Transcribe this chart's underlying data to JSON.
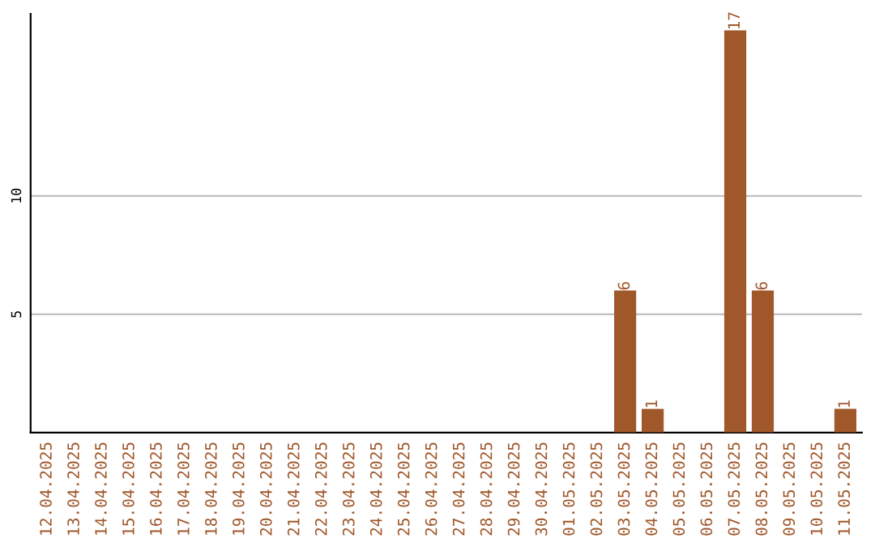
{
  "chart_data": {
    "type": "bar",
    "categories": [
      "12.04.2025",
      "13.04.2025",
      "14.04.2025",
      "15.04.2025",
      "16.04.2025",
      "17.04.2025",
      "18.04.2025",
      "19.04.2025",
      "20.04.2025",
      "21.04.2025",
      "22.04.2025",
      "23.04.2025",
      "24.04.2025",
      "25.04.2025",
      "26.04.2025",
      "27.04.2025",
      "28.04.2025",
      "29.04.2025",
      "30.04.2025",
      "01.05.2025",
      "02.05.2025",
      "03.05.2025",
      "04.05.2025",
      "05.05.2025",
      "06.05.2025",
      "07.05.2025",
      "08.05.2025",
      "09.05.2025",
      "10.05.2025",
      "11.05.2025"
    ],
    "values": [
      0,
      0,
      0,
      0,
      0,
      0,
      0,
      0,
      0,
      0,
      0,
      0,
      0,
      0,
      0,
      0,
      0,
      0,
      0,
      0,
      0,
      6,
      1,
      0,
      0,
      17,
      6,
      0,
      0,
      1
    ],
    "value_labels": [
      null,
      null,
      null,
      null,
      null,
      null,
      null,
      null,
      null,
      null,
      null,
      null,
      null,
      null,
      null,
      null,
      null,
      null,
      null,
      null,
      null,
      "6",
      "1",
      null,
      null,
      "17",
      "6",
      null,
      null,
      "1"
    ],
    "color": "#a0572a",
    "ylim": [
      0,
      17.7
    ],
    "yticks": [
      5,
      10
    ],
    "grid": "y",
    "legend": false
  }
}
